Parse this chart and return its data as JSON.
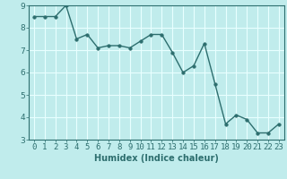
{
  "x": [
    0,
    1,
    2,
    3,
    4,
    5,
    6,
    7,
    8,
    9,
    10,
    11,
    12,
    13,
    14,
    15,
    16,
    17,
    18,
    19,
    20,
    21,
    22,
    23
  ],
  "y": [
    8.5,
    8.5,
    8.5,
    9.0,
    7.5,
    7.7,
    7.1,
    7.2,
    7.2,
    7.1,
    7.4,
    7.7,
    7.7,
    6.9,
    6.0,
    6.3,
    7.3,
    5.5,
    3.7,
    4.1,
    3.9,
    3.3,
    3.3,
    3.7
  ],
  "xlabel": "Humidex (Indice chaleur)",
  "ylim": [
    3,
    9
  ],
  "xlim_min": -0.5,
  "xlim_max": 23.5,
  "yticks": [
    3,
    4,
    5,
    6,
    7,
    8,
    9
  ],
  "xticks": [
    0,
    1,
    2,
    3,
    4,
    5,
    6,
    7,
    8,
    9,
    10,
    11,
    12,
    13,
    14,
    15,
    16,
    17,
    18,
    19,
    20,
    21,
    22,
    23
  ],
  "line_color": "#2d6e6e",
  "marker_color": "#2d6e6e",
  "bg_color": "#c0ecec",
  "grid_color": "#e8ffff",
  "xlabel_fontsize": 7,
  "tick_fontsize": 6.5,
  "line_width": 1.0,
  "marker_size": 2.5
}
